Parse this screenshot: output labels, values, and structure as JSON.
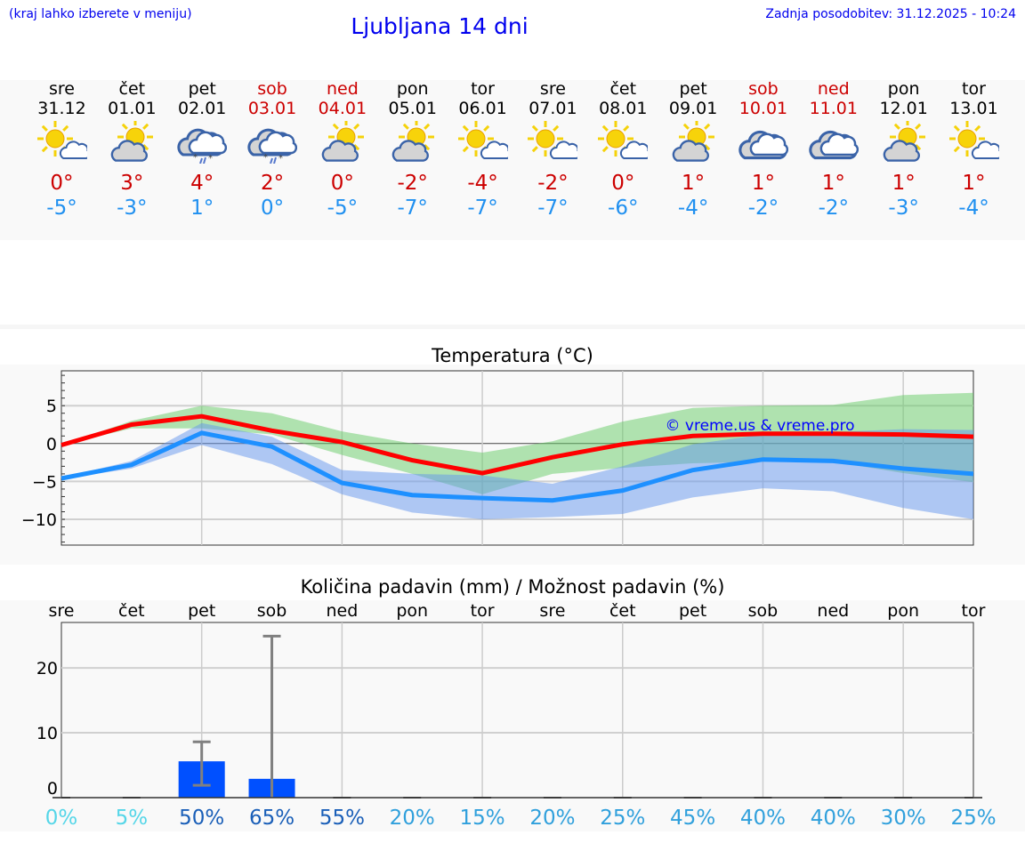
{
  "header": {
    "menu_hint": "(kraj lahko izberete v meniju)",
    "title": "Ljubljana 14 dni",
    "updated": "Zadnja posodobitev: 31.12.2025 - 10:24"
  },
  "colors": {
    "max": "#cc0000",
    "min": "#2090f0",
    "weekend": "#cc0000",
    "link": "#0000ee"
  },
  "days": [
    {
      "name": "sre",
      "date": "31.12",
      "weekend": false,
      "icon": "sun-small-cloud",
      "max": "0°",
      "min": "-5°"
    },
    {
      "name": "čet",
      "date": "01.01",
      "weekend": false,
      "icon": "partly-cloudy",
      "max": "3°",
      "min": "-3°"
    },
    {
      "name": "pet",
      "date": "02.01",
      "weekend": false,
      "icon": "cloud-sleet",
      "max": "4°",
      "min": "1°"
    },
    {
      "name": "sob",
      "date": "03.01",
      "weekend": true,
      "icon": "cloud-sleet",
      "max": "2°",
      "min": "0°"
    },
    {
      "name": "ned",
      "date": "04.01",
      "weekend": true,
      "icon": "partly-cloudy",
      "max": "0°",
      "min": "-5°"
    },
    {
      "name": "pon",
      "date": "05.01",
      "weekend": false,
      "icon": "partly-cloudy",
      "max": "-2°",
      "min": "-7°"
    },
    {
      "name": "tor",
      "date": "06.01",
      "weekend": false,
      "icon": "sun-small-cloud",
      "max": "-4°",
      "min": "-7°"
    },
    {
      "name": "sre",
      "date": "07.01",
      "weekend": false,
      "icon": "sun-small-cloud",
      "max": "-2°",
      "min": "-7°"
    },
    {
      "name": "čet",
      "date": "08.01",
      "weekend": false,
      "icon": "sun-small-cloud",
      "max": "0°",
      "min": "-6°"
    },
    {
      "name": "pet",
      "date": "09.01",
      "weekend": false,
      "icon": "partly-cloudy",
      "max": "1°",
      "min": "-4°"
    },
    {
      "name": "sob",
      "date": "10.01",
      "weekend": true,
      "icon": "cloudy",
      "max": "1°",
      "min": "-2°"
    },
    {
      "name": "ned",
      "date": "11.01",
      "weekend": true,
      "icon": "cloudy",
      "max": "1°",
      "min": "-2°"
    },
    {
      "name": "pon",
      "date": "12.01",
      "weekend": false,
      "icon": "partly-cloudy",
      "max": "1°",
      "min": "-3°"
    },
    {
      "name": "tor",
      "date": "13.01",
      "weekend": false,
      "icon": "sun-small-cloud",
      "max": "1°",
      "min": "-4°"
    }
  ],
  "chart_data": [
    {
      "type": "line",
      "title": "Temperatura (°C)",
      "watermark": "© vreme.us & vreme.pro",
      "ylim": [
        -13.4,
        9.6
      ],
      "yticks": [
        5,
        0,
        -5,
        -10
      ],
      "grid": true,
      "x": [
        "31.12",
        "01.01",
        "02.01",
        "03.01",
        "04.01",
        "05.01",
        "06.01",
        "07.01",
        "08.01",
        "09.01",
        "10.01",
        "11.01",
        "12.01",
        "13.01"
      ],
      "series": [
        {
          "role": "max",
          "color": "#ff0000",
          "values": [
            -0.2,
            2.5,
            3.6,
            1.7,
            0.2,
            -2.2,
            -3.9,
            -1.8,
            -0.1,
            1.0,
            1.3,
            1.3,
            1.2,
            0.9
          ]
        },
        {
          "role": "min",
          "color": "#1e90ff",
          "values": [
            -4.6,
            -2.8,
            1.4,
            -0.4,
            -5.2,
            -6.8,
            -7.2,
            -7.5,
            -6.2,
            -3.5,
            -2.1,
            -2.3,
            -3.3,
            -4.0
          ]
        }
      ],
      "bands": [
        {
          "role": "max-range",
          "color": "#66cc66",
          "upper": [
            -0.2,
            3.0,
            5.0,
            4.0,
            1.6,
            0.0,
            -1.2,
            0.3,
            2.9,
            4.7,
            5.0,
            5.1,
            6.4,
            6.7
          ],
          "lower": [
            -0.2,
            2.0,
            2.0,
            1.2,
            -1.5,
            -4.0,
            -6.7,
            -4.0,
            -3.2,
            -2.6,
            -2.4,
            -2.4,
            -3.9,
            -5.1
          ]
        },
        {
          "role": "min-range",
          "color": "#6495ed",
          "upper": [
            -4.5,
            -2.3,
            2.7,
            0.9,
            -3.5,
            -4.0,
            -4.2,
            -5.3,
            -3.0,
            -0.1,
            1.2,
            1.5,
            1.9,
            1.8
          ],
          "lower": [
            -4.7,
            -3.3,
            -0.2,
            -2.7,
            -6.7,
            -9.1,
            -10.0,
            -9.7,
            -9.3,
            -7.1,
            -5.9,
            -6.3,
            -8.5,
            -10.0
          ]
        }
      ]
    },
    {
      "type": "bar",
      "title": "Količina padavin (mm) / Možnost padavin (%)",
      "ylim": [
        0,
        27
      ],
      "yticks": [
        20,
        10,
        0
      ],
      "grid": true,
      "categories": [
        "sre",
        "čet",
        "pet",
        "sob",
        "ned",
        "pon",
        "tor",
        "sre",
        "čet",
        "pet",
        "sob",
        "ned",
        "pon",
        "tor"
      ],
      "values": [
        0,
        0,
        5.6,
        2.9,
        0,
        0,
        0,
        0,
        0,
        0,
        0,
        0,
        0,
        0
      ],
      "error_low": [
        0,
        0,
        1.9,
        0,
        0,
        0,
        0,
        0,
        0,
        0,
        0,
        0,
        0,
        0
      ],
      "error_high": [
        0,
        0,
        8.6,
        24.9,
        0,
        0,
        0,
        0,
        0,
        0,
        0,
        0,
        0,
        0
      ],
      "bar_color": "#0050ff",
      "probability": [
        "0%",
        "5%",
        "50%",
        "65%",
        "55%",
        "20%",
        "15%",
        "20%",
        "25%",
        "45%",
        "40%",
        "40%",
        "30%",
        "25%"
      ],
      "probability_colors": {
        "low": "#55d6e8",
        "mid": "#30a0dc",
        "high": "#1a5fb8"
      }
    }
  ]
}
